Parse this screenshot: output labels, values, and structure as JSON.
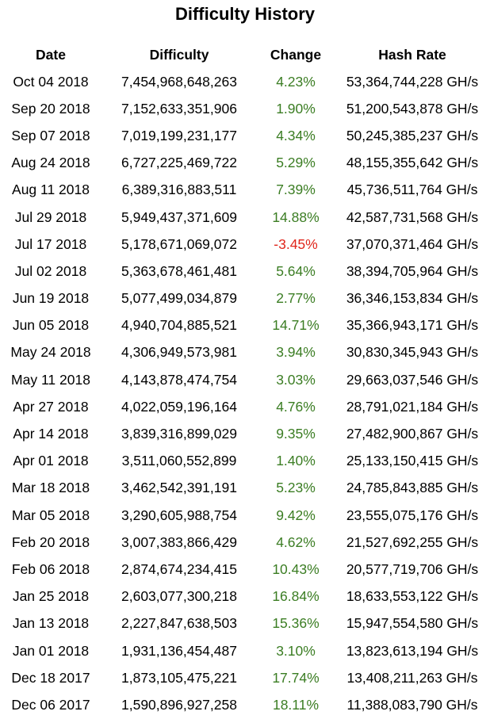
{
  "title": "Difficulty History",
  "columns": [
    "Date",
    "Difficulty",
    "Change",
    "Hash Rate"
  ],
  "colors": {
    "positive": "#3b7d23",
    "negative": "#e0261c"
  },
  "rows": [
    {
      "date": "Oct 04 2018",
      "difficulty": "7,454,968,648,263",
      "change": "4.23%",
      "hash_rate": "53,364,744,228 GH/s"
    },
    {
      "date": "Sep 20 2018",
      "difficulty": "7,152,633,351,906",
      "change": "1.90%",
      "hash_rate": "51,200,543,878 GH/s"
    },
    {
      "date": "Sep 07 2018",
      "difficulty": "7,019,199,231,177",
      "change": "4.34%",
      "hash_rate": "50,245,385,237 GH/s"
    },
    {
      "date": "Aug 24 2018",
      "difficulty": "6,727,225,469,722",
      "change": "5.29%",
      "hash_rate": "48,155,355,642 GH/s"
    },
    {
      "date": "Aug 11 2018",
      "difficulty": "6,389,316,883,511",
      "change": "7.39%",
      "hash_rate": "45,736,511,764 GH/s"
    },
    {
      "date": "Jul 29 2018",
      "difficulty": "5,949,437,371,609",
      "change": "14.88%",
      "hash_rate": "42,587,731,568 GH/s"
    },
    {
      "date": "Jul 17 2018",
      "difficulty": "5,178,671,069,072",
      "change": "-3.45%",
      "hash_rate": "37,070,371,464 GH/s"
    },
    {
      "date": "Jul 02 2018",
      "difficulty": "5,363,678,461,481",
      "change": "5.64%",
      "hash_rate": "38,394,705,964 GH/s"
    },
    {
      "date": "Jun 19 2018",
      "difficulty": "5,077,499,034,879",
      "change": "2.77%",
      "hash_rate": "36,346,153,834 GH/s"
    },
    {
      "date": "Jun 05 2018",
      "difficulty": "4,940,704,885,521",
      "change": "14.71%",
      "hash_rate": "35,366,943,171 GH/s"
    },
    {
      "date": "May 24 2018",
      "difficulty": "4,306,949,573,981",
      "change": "3.94%",
      "hash_rate": "30,830,345,943 GH/s"
    },
    {
      "date": "May 11 2018",
      "difficulty": "4,143,878,474,754",
      "change": "3.03%",
      "hash_rate": "29,663,037,546 GH/s"
    },
    {
      "date": "Apr 27 2018",
      "difficulty": "4,022,059,196,164",
      "change": "4.76%",
      "hash_rate": "28,791,021,184 GH/s"
    },
    {
      "date": "Apr 14 2018",
      "difficulty": "3,839,316,899,029",
      "change": "9.35%",
      "hash_rate": "27,482,900,867 GH/s"
    },
    {
      "date": "Apr 01 2018",
      "difficulty": "3,511,060,552,899",
      "change": "1.40%",
      "hash_rate": "25,133,150,415 GH/s"
    },
    {
      "date": "Mar 18 2018",
      "difficulty": "3,462,542,391,191",
      "change": "5.23%",
      "hash_rate": "24,785,843,885 GH/s"
    },
    {
      "date": "Mar 05 2018",
      "difficulty": "3,290,605,988,754",
      "change": "9.42%",
      "hash_rate": "23,555,075,176 GH/s"
    },
    {
      "date": "Feb 20 2018",
      "difficulty": "3,007,383,866,429",
      "change": "4.62%",
      "hash_rate": "21,527,692,255 GH/s"
    },
    {
      "date": "Feb 06 2018",
      "difficulty": "2,874,674,234,415",
      "change": "10.43%",
      "hash_rate": "20,577,719,706 GH/s"
    },
    {
      "date": "Jan 25 2018",
      "difficulty": "2,603,077,300,218",
      "change": "16.84%",
      "hash_rate": "18,633,553,122 GH/s"
    },
    {
      "date": "Jan 13 2018",
      "difficulty": "2,227,847,638,503",
      "change": "15.36%",
      "hash_rate": "15,947,554,580 GH/s"
    },
    {
      "date": "Jan 01 2018",
      "difficulty": "1,931,136,454,487",
      "change": "3.10%",
      "hash_rate": "13,823,613,194 GH/s"
    },
    {
      "date": "Dec 18 2017",
      "difficulty": "1,873,105,475,221",
      "change": "17.74%",
      "hash_rate": "13,408,211,263 GH/s"
    },
    {
      "date": "Dec 06 2017",
      "difficulty": "1,590,896,927,258",
      "change": "18.11%",
      "hash_rate": "11,388,083,790 GH/s"
    }
  ]
}
